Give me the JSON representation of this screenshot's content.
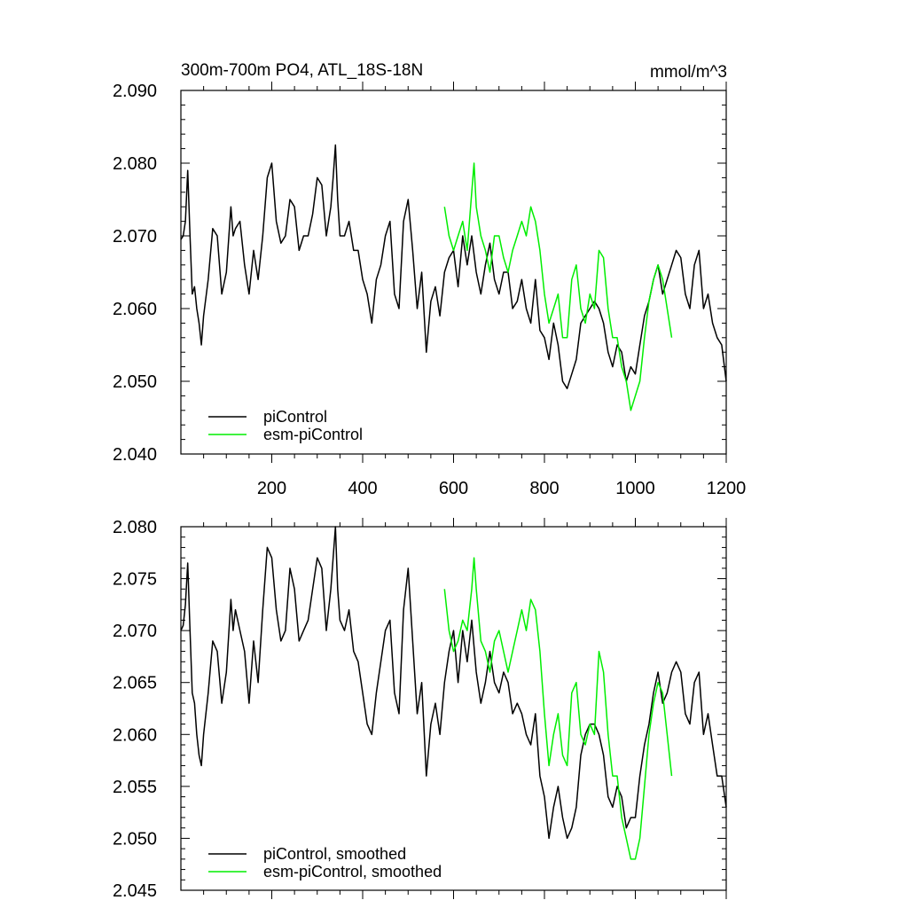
{
  "figure": {
    "title": "300m-700m PO4, ATL_18S-18N",
    "units": "mmol/m^3"
  },
  "colors": {
    "piControl": "#000000",
    "esm_piControl": "#00ee00"
  },
  "chart_data": [
    {
      "type": "line",
      "title": "300m-700m PO4, ATL_18S-18N",
      "units_label": "mmol/m^3",
      "xlabel": "",
      "ylabel": "",
      "xlim": [
        0,
        1200
      ],
      "ylim": [
        2.04,
        2.09
      ],
      "xticks": [
        200,
        400,
        600,
        800,
        1000,
        1200
      ],
      "xtick_labels": [
        "200",
        "400",
        "600",
        "800",
        "1000",
        "1200"
      ],
      "yticks": [
        2.04,
        2.05,
        2.06,
        2.07,
        2.08,
        2.09
      ],
      "ytick_labels": [
        "2.040",
        "2.050",
        "2.060",
        "2.070",
        "2.080",
        "2.090"
      ],
      "legend_position": "bottom-left",
      "series": [
        {
          "name": "piControl",
          "color": "#000000",
          "x": [
            0,
            5,
            10,
            15,
            20,
            25,
            30,
            35,
            40,
            45,
            50,
            60,
            70,
            80,
            90,
            100,
            110,
            115,
            120,
            130,
            140,
            150,
            160,
            170,
            180,
            190,
            200,
            210,
            220,
            230,
            240,
            250,
            260,
            270,
            280,
            290,
            300,
            310,
            320,
            330,
            335,
            340,
            345,
            350,
            360,
            370,
            380,
            390,
            400,
            410,
            420,
            430,
            440,
            450,
            460,
            470,
            480,
            490,
            500,
            510,
            520,
            530,
            540,
            550,
            560,
            570,
            580,
            590,
            600,
            610,
            620,
            630,
            640,
            650,
            660,
            670,
            680,
            690,
            700,
            710,
            720,
            730,
            740,
            750,
            760,
            770,
            780,
            790,
            800,
            810,
            820,
            830,
            840,
            850,
            860,
            870,
            880,
            890,
            900,
            910,
            920,
            930,
            940,
            950,
            960,
            970,
            980,
            990,
            1000,
            1010,
            1020,
            1030,
            1040,
            1050,
            1060,
            1070,
            1080,
            1090,
            1100,
            1110,
            1120,
            1130,
            1140,
            1150,
            1160,
            1170,
            1180,
            1190,
            1200
          ],
          "y": [
            2.0695,
            2.07,
            2.072,
            2.079,
            2.07,
            2.062,
            2.063,
            2.06,
            2.058,
            2.055,
            2.059,
            2.064,
            2.071,
            2.07,
            2.062,
            2.065,
            2.074,
            2.07,
            2.071,
            2.072,
            2.066,
            2.062,
            2.068,
            2.064,
            2.07,
            2.078,
            2.08,
            2.072,
            2.069,
            2.07,
            2.075,
            2.074,
            2.068,
            2.07,
            2.07,
            2.073,
            2.078,
            2.077,
            2.07,
            2.074,
            2.078,
            2.0825,
            2.075,
            2.07,
            2.07,
            2.072,
            2.068,
            2.068,
            2.064,
            2.062,
            2.058,
            2.064,
            2.066,
            2.07,
            2.072,
            2.062,
            2.06,
            2.072,
            2.075,
            2.068,
            2.06,
            2.065,
            2.054,
            2.061,
            2.063,
            2.059,
            2.065,
            2.067,
            2.068,
            2.063,
            2.07,
            2.066,
            2.07,
            2.065,
            2.062,
            2.066,
            2.069,
            2.064,
            2.062,
            2.065,
            2.065,
            2.06,
            2.061,
            2.064,
            2.06,
            2.058,
            2.064,
            2.057,
            2.056,
            2.053,
            2.058,
            2.055,
            2.05,
            2.049,
            2.051,
            2.053,
            2.058,
            2.059,
            2.06,
            2.061,
            2.06,
            2.058,
            2.054,
            2.052,
            2.055,
            2.054,
            2.05,
            2.052,
            2.051,
            2.055,
            2.059,
            2.061,
            2.064,
            2.066,
            2.062,
            2.064,
            2.066,
            2.068,
            2.067,
            2.062,
            2.06,
            2.066,
            2.068,
            2.06,
            2.062,
            2.058,
            2.056,
            2.055,
            2.05
          ]
        },
        {
          "name": "esm-piControl",
          "color": "#00ee00",
          "x": [
            580,
            590,
            600,
            610,
            620,
            630,
            640,
            645,
            650,
            660,
            670,
            680,
            690,
            700,
            710,
            720,
            730,
            740,
            750,
            760,
            770,
            780,
            790,
            800,
            810,
            820,
            830,
            840,
            850,
            860,
            870,
            880,
            890,
            900,
            910,
            920,
            930,
            940,
            950,
            960,
            970,
            980,
            990,
            1000,
            1010,
            1020,
            1030,
            1040,
            1050,
            1060,
            1070,
            1080
          ],
          "y": [
            2.074,
            2.07,
            2.068,
            2.07,
            2.072,
            2.068,
            2.076,
            2.08,
            2.074,
            2.07,
            2.068,
            2.065,
            2.07,
            2.07,
            2.067,
            2.065,
            2.068,
            2.07,
            2.072,
            2.07,
            2.074,
            2.072,
            2.068,
            2.062,
            2.058,
            2.06,
            2.062,
            2.056,
            2.056,
            2.064,
            2.066,
            2.06,
            2.058,
            2.062,
            2.06,
            2.068,
            2.067,
            2.06,
            2.056,
            2.056,
            2.052,
            2.05,
            2.046,
            2.048,
            2.05,
            2.056,
            2.061,
            2.064,
            2.066,
            2.064,
            2.06,
            2.056
          ]
        }
      ]
    },
    {
      "type": "line",
      "title": "",
      "xlabel": "",
      "ylabel": "",
      "xlim": [
        0,
        1200
      ],
      "ylim": [
        2.045,
        2.08
      ],
      "xticks": [
        200,
        400,
        600,
        800,
        1000,
        1200
      ],
      "xtick_labels": [],
      "yticks": [
        2.045,
        2.05,
        2.055,
        2.06,
        2.065,
        2.07,
        2.075,
        2.08
      ],
      "ytick_labels": [
        "2.045",
        "2.050",
        "2.055",
        "2.060",
        "2.065",
        "2.070",
        "2.075",
        "2.080"
      ],
      "legend_position": "bottom-left",
      "series": [
        {
          "name": "piControl, smoothed",
          "color": "#000000",
          "x": [
            0,
            5,
            10,
            15,
            20,
            25,
            30,
            35,
            40,
            45,
            50,
            60,
            70,
            80,
            90,
            100,
            110,
            115,
            120,
            130,
            140,
            150,
            160,
            170,
            180,
            190,
            200,
            210,
            220,
            230,
            240,
            250,
            260,
            270,
            280,
            290,
            300,
            310,
            320,
            330,
            335,
            340,
            345,
            350,
            360,
            370,
            380,
            390,
            400,
            410,
            420,
            430,
            440,
            450,
            460,
            470,
            480,
            490,
            500,
            510,
            520,
            530,
            540,
            550,
            560,
            570,
            580,
            590,
            600,
            610,
            620,
            630,
            640,
            650,
            660,
            670,
            680,
            690,
            700,
            710,
            720,
            730,
            740,
            750,
            760,
            770,
            780,
            790,
            800,
            810,
            820,
            830,
            840,
            850,
            860,
            870,
            880,
            890,
            900,
            910,
            920,
            930,
            940,
            950,
            960,
            970,
            980,
            990,
            1000,
            1010,
            1020,
            1030,
            1040,
            1050,
            1060,
            1070,
            1080,
            1090,
            1100,
            1110,
            1120,
            1130,
            1140,
            1150,
            1160,
            1170,
            1180,
            1190,
            1200
          ],
          "y": [
            2.07,
            2.0705,
            2.0725,
            2.0765,
            2.07,
            2.064,
            2.063,
            2.06,
            2.058,
            2.057,
            2.06,
            2.064,
            2.069,
            2.068,
            2.063,
            2.066,
            2.073,
            2.07,
            2.072,
            2.07,
            2.068,
            2.063,
            2.069,
            2.065,
            2.072,
            2.078,
            2.077,
            2.072,
            2.069,
            2.07,
            2.076,
            2.074,
            2.069,
            2.07,
            2.071,
            2.074,
            2.077,
            2.076,
            2.07,
            2.074,
            2.077,
            2.08,
            2.074,
            2.071,
            2.07,
            2.072,
            2.068,
            2.067,
            2.064,
            2.061,
            2.06,
            2.064,
            2.067,
            2.07,
            2.071,
            2.064,
            2.062,
            2.072,
            2.076,
            2.069,
            2.062,
            2.065,
            2.056,
            2.061,
            2.063,
            2.06,
            2.065,
            2.068,
            2.07,
            2.065,
            2.07,
            2.067,
            2.071,
            2.066,
            2.063,
            2.065,
            2.068,
            2.065,
            2.064,
            2.066,
            2.065,
            2.062,
            2.063,
            2.062,
            2.06,
            2.059,
            2.062,
            2.056,
            2.054,
            2.05,
            2.053,
            2.055,
            2.052,
            2.05,
            2.051,
            2.053,
            2.058,
            2.06,
            2.061,
            2.061,
            2.06,
            2.058,
            2.054,
            2.053,
            2.055,
            2.054,
            2.051,
            2.052,
            2.052,
            2.056,
            2.059,
            2.061,
            2.064,
            2.066,
            2.063,
            2.064,
            2.066,
            2.067,
            2.066,
            2.062,
            2.061,
            2.065,
            2.066,
            2.06,
            2.062,
            2.059,
            2.056,
            2.056,
            2.053
          ]
        },
        {
          "name": "esm-piControl, smoothed",
          "color": "#00ee00",
          "x": [
            580,
            590,
            600,
            610,
            620,
            630,
            640,
            645,
            650,
            660,
            670,
            680,
            690,
            700,
            710,
            720,
            730,
            740,
            750,
            760,
            770,
            780,
            790,
            800,
            810,
            820,
            830,
            840,
            850,
            860,
            870,
            880,
            890,
            900,
            910,
            920,
            930,
            940,
            950,
            960,
            970,
            980,
            990,
            1000,
            1010,
            1020,
            1030,
            1040,
            1050,
            1060,
            1070,
            1080
          ],
          "y": [
            2.074,
            2.07,
            2.068,
            2.069,
            2.071,
            2.07,
            2.074,
            2.077,
            2.074,
            2.069,
            2.068,
            2.066,
            2.069,
            2.07,
            2.068,
            2.066,
            2.068,
            2.07,
            2.072,
            2.07,
            2.073,
            2.072,
            2.068,
            2.062,
            2.057,
            2.06,
            2.062,
            2.058,
            2.057,
            2.064,
            2.065,
            2.06,
            2.059,
            2.061,
            2.06,
            2.068,
            2.066,
            2.06,
            2.056,
            2.056,
            2.052,
            2.05,
            2.048,
            2.048,
            2.05,
            2.055,
            2.06,
            2.063,
            2.065,
            2.064,
            2.06,
            2.056
          ]
        }
      ]
    }
  ]
}
